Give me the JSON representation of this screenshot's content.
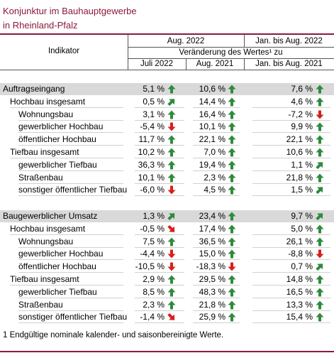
{
  "title_line1": "Konjunktur im Bauhauptgewerbe",
  "title_line2": "in Rheinland-Pfalz",
  "header": {
    "indikator": "Indikator",
    "aug2022": "Aug. 2022",
    "janaug2022": "Jan. bis Aug. 2022",
    "veraenderung": "Veränderung des Wertes¹ zu",
    "juli2022": "Juli 2022",
    "aug2021": "Aug. 2021",
    "janaug2021": "Jan. bis Aug. 2021"
  },
  "colors": {
    "up": "#2e8b3d",
    "down": "#d6201f",
    "accent": "#8b1a3a",
    "shade": "#d9d9d9"
  },
  "sections": [
    {
      "rows": [
        {
          "label": "Auftragseingang",
          "level": 0,
          "v1": "5,1 %",
          "a1": "up",
          "v2": "10,6 %",
          "a2": "up",
          "v3": "7,6 %",
          "a3": "up"
        },
        {
          "label": "Hochbau insgesamt",
          "level": 1,
          "v1": "0,5 %",
          "a1": "upright",
          "v2": "14,4 %",
          "a2": "up",
          "v3": "4,6 %",
          "a3": "up"
        },
        {
          "label": "Wohnungsbau",
          "level": 2,
          "v1": "3,1 %",
          "a1": "up",
          "v2": "16,4 %",
          "a2": "up",
          "v3": "-7,2 %",
          "a3": "down"
        },
        {
          "label": "gewerblicher Hochbau",
          "level": 2,
          "v1": "-5,4 %",
          "a1": "down",
          "v2": "10,1 %",
          "a2": "up",
          "v3": "9,9 %",
          "a3": "up"
        },
        {
          "label": "öffentlicher Hochbau",
          "level": 2,
          "v1": "11,7 %",
          "a1": "up",
          "v2": "22,1 %",
          "a2": "up",
          "v3": "22,1 %",
          "a3": "up"
        },
        {
          "label": "Tiefbau insgesamt",
          "level": 1,
          "v1": "10,2 %",
          "a1": "up",
          "v2": "7,0 %",
          "a2": "up",
          "v3": "10,6 %",
          "a3": "up"
        },
        {
          "label": "gewerblicher Tiefbau",
          "level": 2,
          "v1": "36,3 %",
          "a1": "up",
          "v2": "19,4 %",
          "a2": "up",
          "v3": "1,1 %",
          "a3": "upright"
        },
        {
          "label": "Straßenbau",
          "level": 2,
          "v1": "10,1 %",
          "a1": "up",
          "v2": "2,3 %",
          "a2": "up",
          "v3": "21,8 %",
          "a3": "up"
        },
        {
          "label": "sonstiger öffentlicher Tiefbau",
          "level": 2,
          "v1": "-6,0 %",
          "a1": "down",
          "v2": "4,5 %",
          "a2": "up",
          "v3": "1,5 %",
          "a3": "upright"
        }
      ]
    },
    {
      "rows": [
        {
          "label": "Baugewerblicher Umsatz",
          "level": 0,
          "v1": "1,3 %",
          "a1": "upright",
          "v2": "23,4 %",
          "a2": "up",
          "v3": "9,7 %",
          "a3": "upright"
        },
        {
          "label": "Hochbau insgesamt",
          "level": 1,
          "v1": "-0,5 %",
          "a1": "downright",
          "v2": "17,4 %",
          "a2": "up",
          "v3": "5,0 %",
          "a3": "up"
        },
        {
          "label": "Wohnungsbau",
          "level": 2,
          "v1": "7,5 %",
          "a1": "up",
          "v2": "36,5 %",
          "a2": "up",
          "v3": "26,1 %",
          "a3": "up"
        },
        {
          "label": "gewerblicher Hochbau",
          "level": 2,
          "v1": "-4,4 %",
          "a1": "down",
          "v2": "15,0 %",
          "a2": "up",
          "v3": "-8,8 %",
          "a3": "down"
        },
        {
          "label": "öffentlicher Hochbau",
          "level": 2,
          "v1": "-10,5 %",
          "a1": "down",
          "v2": "-18,3 %",
          "a2": "down",
          "v3": "0,7 %",
          "a3": "upright"
        },
        {
          "label": "Tiefbau insgesamt",
          "level": 1,
          "v1": "2,9 %",
          "a1": "up",
          "v2": "29,5 %",
          "a2": "up",
          "v3": "14,8 %",
          "a3": "up"
        },
        {
          "label": "gewerblicher Tiefbau",
          "level": 2,
          "v1": "8,5 %",
          "a1": "up",
          "v2": "48,3 %",
          "a2": "up",
          "v3": "16,5 %",
          "a3": "up"
        },
        {
          "label": "Straßenbau",
          "level": 2,
          "v1": "2,3 %",
          "a1": "up",
          "v2": "21,8 %",
          "a2": "up",
          "v3": "13,3 %",
          "a3": "up"
        },
        {
          "label": "sonstiger öffentlicher Tiefbau",
          "level": 2,
          "v1": "-1,4 %",
          "a1": "downright",
          "v2": "25,9 %",
          "a2": "up",
          "v3": "15,4 %",
          "a3": "up"
        }
      ]
    }
  ],
  "footnote": "1 Endgültige nominale kalender- und saisonbereinigte Werte."
}
